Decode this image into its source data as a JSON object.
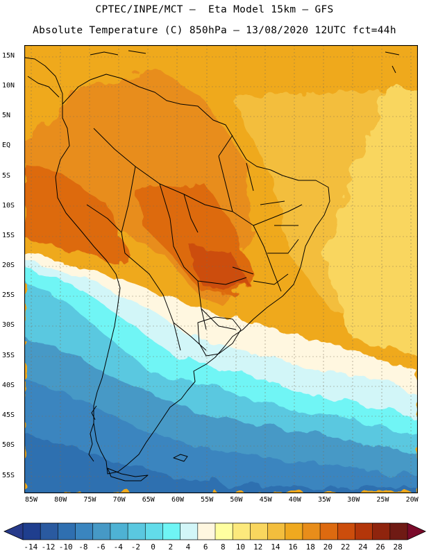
{
  "header": {
    "line1": "CPTEC/INPE/MCT –  Eta Model 15km – GFS",
    "line2": "Absolute Temperature (C) 850hPa – 13/08/2020 12UTC fct=44h"
  },
  "map": {
    "lat_labels": [
      "15N",
      "10N",
      "5N",
      "EQ",
      "5S",
      "10S",
      "15S",
      "20S",
      "25S",
      "30S",
      "35S",
      "40S",
      "45S",
      "50S",
      "55S"
    ],
    "lon_labels": [
      "85W",
      "80W",
      "75W",
      "70W",
      "65W",
      "60W",
      "55W",
      "50W",
      "45W",
      "40W",
      "35W",
      "30W",
      "25W",
      "20W"
    ]
  },
  "colorbar": {
    "labels": [
      "-14",
      "-12",
      "-10",
      "-8",
      "-6",
      "-4",
      "-2",
      "0",
      "2",
      "4",
      "6",
      "8",
      "10",
      "12",
      "14",
      "16",
      "18",
      "20",
      "22",
      "24",
      "26",
      "28"
    ],
    "colors": [
      "#1f3e8e",
      "#2a5aa0",
      "#2f6fb0",
      "#3a85bf",
      "#4699c6",
      "#4eb2d4",
      "#5ac8e0",
      "#62dcea",
      "#6ff5f5",
      "#d2f6f8",
      "#fff7e0",
      "#ffffa0",
      "#fce97c",
      "#f9d65e",
      "#f3be3d",
      "#efa91f",
      "#e88d1a",
      "#dd6a10",
      "#cc4d0c",
      "#b3360a",
      "#8f240d",
      "#6f1a14"
    ],
    "low_arrow_color": "#273a8a",
    "high_arrow_color": "#7a0a2a"
  }
}
